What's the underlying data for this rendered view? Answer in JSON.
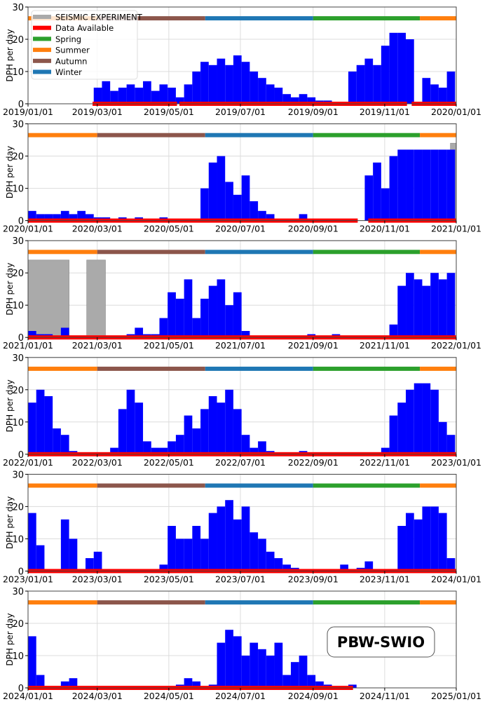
{
  "chart_data": {
    "type": "bar",
    "ylabel": "DPH per day",
    "ylim": [
      0,
      30
    ],
    "yticks": [
      0,
      10,
      20,
      30
    ],
    "bin": "weekly (approximate)",
    "station_label": "PBW-SWIO",
    "legend": {
      "placement": "top-left",
      "entries": [
        {
          "label": "SEISMIC EXPERIMENT",
          "color": "#aaaaaa"
        },
        {
          "label": "Data Available",
          "color": "#ff0000"
        },
        {
          "label": "Spring",
          "color": "#2ca02c"
        },
        {
          "label": "Summer",
          "color": "#ff7f0e"
        },
        {
          "label": "Autumn",
          "color": "#8c564b"
        },
        {
          "label": "Winter",
          "color": "#1f77b4"
        }
      ]
    },
    "seasons": [
      {
        "name": "Summer",
        "start_day": 0,
        "end_day": 59,
        "color": "#ff7f0e"
      },
      {
        "name": "Autumn",
        "start_day": 59,
        "end_day": 151,
        "color": "#8c564b"
      },
      {
        "name": "Winter",
        "start_day": 151,
        "end_day": 243,
        "color": "#1f77b4"
      },
      {
        "name": "Spring",
        "start_day": 243,
        "end_day": 334,
        "color": "#2ca02c"
      },
      {
        "name": "Summer",
        "start_day": 334,
        "end_day": 365,
        "color": "#ff7f0e"
      }
    ],
    "bar_color": "#0000ff",
    "tick_days": [
      0,
      59,
      120,
      181,
      243,
      304,
      365
    ],
    "panels": [
      {
        "year": 2019,
        "xticks": [
          "2019/01/01",
          "2019/03/01",
          "2019/05/01",
          "2019/07/01",
          "2019/09/01",
          "2019/11/01",
          "2020/01/01"
        ],
        "available": [
          [
            55,
            127
          ],
          [
            129,
            323
          ],
          [
            327,
            365
          ]
        ],
        "seismic": [],
        "weekly": [
          0,
          0,
          0,
          0,
          0,
          0,
          0,
          0,
          5,
          7,
          4,
          5,
          6,
          5,
          7,
          4,
          6,
          5,
          2,
          6,
          10,
          13,
          12,
          14,
          12,
          15,
          13,
          10,
          8,
          6,
          5,
          3,
          2,
          3,
          2,
          1,
          1,
          0,
          0,
          10,
          12,
          14,
          12,
          18,
          22,
          22,
          20,
          0,
          8,
          6,
          5,
          10
        ]
      },
      {
        "year": 2020,
        "xticks": [
          "2020/01/01",
          "2020/03/01",
          "2020/05/01",
          "2020/07/01",
          "2020/09/01",
          "2020/11/01",
          "2021/01/01"
        ],
        "available": [
          [
            0,
            281
          ],
          [
            290,
            365
          ]
        ],
        "seismic": [
          [
            360,
            365,
            24
          ]
        ],
        "weekly": [
          3,
          2,
          2,
          2,
          3,
          2,
          3,
          2,
          1,
          1,
          0,
          1,
          0,
          1,
          0,
          0,
          1,
          0,
          0,
          0,
          0,
          10,
          18,
          20,
          12,
          8,
          14,
          6,
          3,
          2,
          0,
          0,
          0,
          2,
          0,
          0,
          0,
          0,
          0,
          0,
          0,
          14,
          18,
          10,
          20,
          22,
          22,
          22,
          22,
          22,
          22,
          22
        ]
      },
      {
        "year": 2021,
        "xticks": [
          "2021/01/01",
          "2021/03/01",
          "2021/05/01",
          "2021/07/01",
          "2021/09/01",
          "2021/11/01",
          "2022/01/01"
        ],
        "available": [
          [
            0,
            365
          ]
        ],
        "seismic": [
          [
            0,
            35,
            24
          ],
          [
            50,
            66,
            24
          ]
        ],
        "weekly": [
          2,
          1,
          1,
          0,
          3,
          0,
          0,
          0,
          0,
          0,
          0,
          0,
          1,
          3,
          1,
          1,
          6,
          14,
          12,
          18,
          6,
          12,
          16,
          18,
          10,
          14,
          2,
          0,
          0,
          0,
          0,
          0,
          0,
          0,
          1,
          0,
          0,
          1,
          0,
          0,
          0,
          0,
          0,
          0,
          4,
          16,
          20,
          18,
          16,
          20,
          18,
          20
        ]
      },
      {
        "year": 2022,
        "xticks": [
          "2022/01/01",
          "2022/03/01",
          "2022/05/01",
          "2022/07/01",
          "2022/09/01",
          "2022/11/01",
          "2023/01/01"
        ],
        "available": [
          [
            0,
            365
          ]
        ],
        "seismic": [],
        "weekly": [
          16,
          20,
          18,
          8,
          6,
          1,
          0,
          0,
          0,
          0,
          2,
          14,
          20,
          16,
          4,
          2,
          2,
          4,
          6,
          12,
          8,
          14,
          18,
          16,
          20,
          14,
          6,
          2,
          4,
          1,
          0,
          0,
          0,
          1,
          0,
          0,
          0,
          0,
          0,
          0,
          0,
          0,
          0,
          2,
          12,
          16,
          20,
          22,
          22,
          20,
          10,
          6
        ]
      },
      {
        "year": 2023,
        "xticks": [
          "2023/01/01",
          "2023/03/01",
          "2023/05/01",
          "2023/07/01",
          "2023/09/01",
          "2023/11/01",
          "2024/01/01"
        ],
        "available": [
          [
            0,
            365
          ]
        ],
        "seismic": [],
        "weekly": [
          18,
          8,
          0,
          0,
          16,
          10,
          0,
          4,
          6,
          0,
          0,
          0,
          0,
          0,
          0,
          0,
          2,
          14,
          10,
          10,
          14,
          10,
          18,
          20,
          22,
          16,
          20,
          12,
          10,
          6,
          4,
          2,
          1,
          0,
          0,
          0,
          0,
          0,
          2,
          0,
          1,
          3,
          0,
          0,
          0,
          14,
          18,
          16,
          20,
          20,
          18,
          4
        ]
      },
      {
        "year": 2024,
        "xticks": [
          "2024/01/01",
          "2024/03/01",
          "2024/05/01",
          "2024/07/01",
          "2024/09/01",
          "2024/11/01",
          "2025/01/01"
        ],
        "available": [
          [
            0,
            277
          ]
        ],
        "seismic": [],
        "weekly": [
          16,
          4,
          0,
          0,
          2,
          3,
          0,
          0,
          0,
          0,
          0,
          0,
          0,
          0,
          0,
          0,
          0,
          0,
          1,
          3,
          2,
          0,
          1,
          14,
          18,
          16,
          10,
          14,
          12,
          10,
          14,
          4,
          8,
          10,
          4,
          2,
          1,
          0,
          0,
          1
        ]
      }
    ]
  }
}
